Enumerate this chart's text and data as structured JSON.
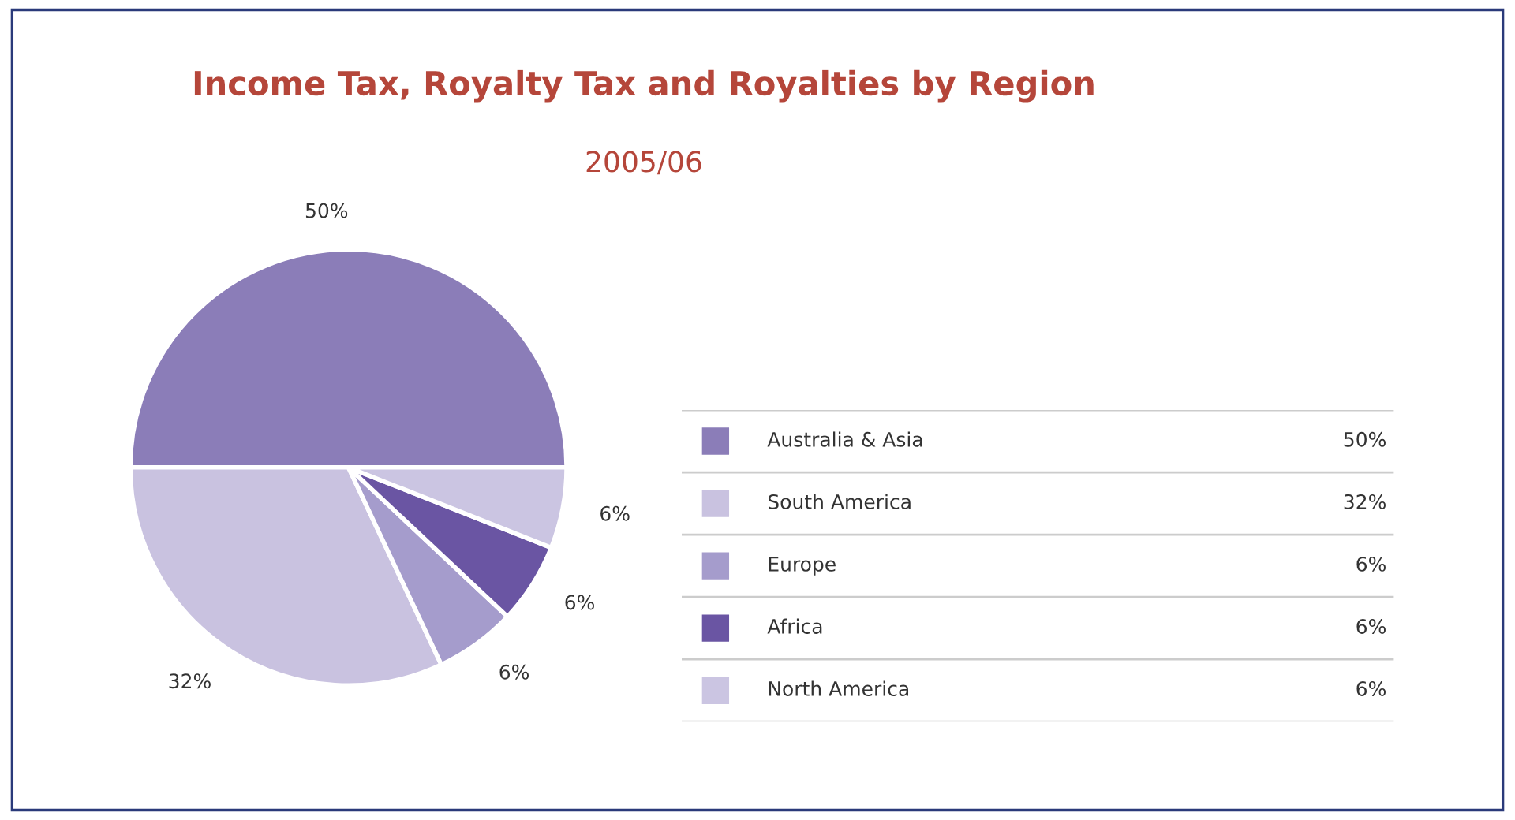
{
  "chart_data": {
    "type": "pie",
    "title": "Income Tax, Royalty Tax and Royalties by Region",
    "subtitle": "2005/06",
    "categories": [
      "Australia & Asia",
      "South America",
      "Europe",
      "Africa",
      "North America"
    ],
    "values": [
      50,
      32,
      6,
      6,
      6
    ],
    "value_labels": [
      "50%",
      "32%",
      "6%",
      "6%",
      "6%"
    ],
    "colors": [
      "#8b7db8",
      "#c9c2e0",
      "#a59ccc",
      "#6a55a3",
      "#cbc5e2"
    ],
    "legend": "right"
  }
}
